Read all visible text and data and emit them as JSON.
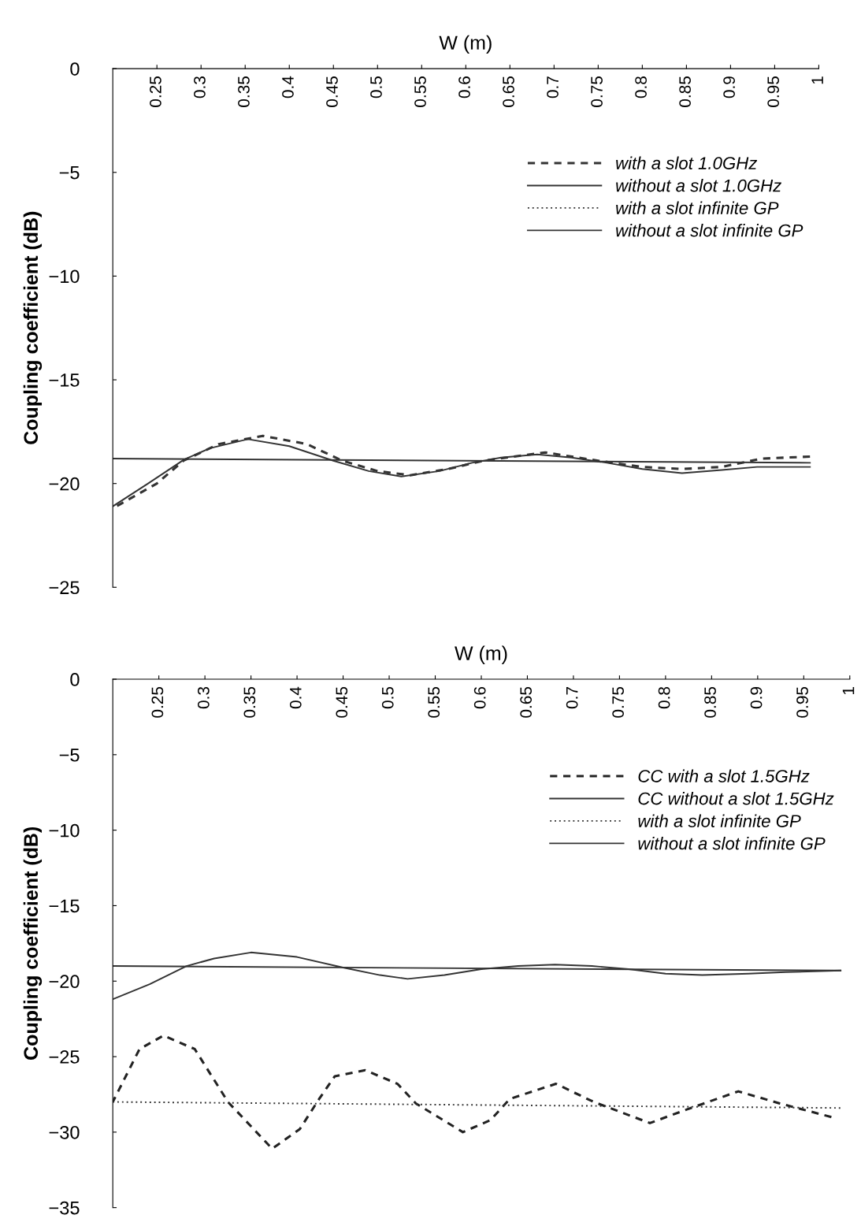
{
  "chart_data": [
    {
      "type": "line",
      "xlabel": "W (m)",
      "ylabel": "Coupling coefficient (dB)",
      "xlim": [
        0.2,
        1.0
      ],
      "xticks": [
        0.25,
        0.3,
        0.35,
        0.4,
        0.45,
        0.5,
        0.55,
        0.6,
        0.65,
        0.7,
        0.75,
        0.8,
        0.85,
        0.9,
        0.95,
        1
      ],
      "ylim": [
        -25,
        0
      ],
      "yticks": [
        0,
        -5,
        -10,
        -15,
        -20,
        -25
      ],
      "grid": false,
      "legend": "right",
      "marker": "none",
      "series": [
        {
          "name": "with a slot 1.0GHz",
          "color": "#333333",
          "line_style": "dashed",
          "x": [
            0.2,
            0.25,
            0.28,
            0.32,
            0.37,
            0.42,
            0.46,
            0.5,
            0.537,
            0.58,
            0.62,
            0.69,
            0.75,
            0.8,
            0.845,
            0.89,
            0.935,
            0.99
          ],
          "values": [
            -21.2,
            -20.0,
            -18.9,
            -18.1,
            -17.7,
            -18.1,
            -18.9,
            -19.4,
            -19.6,
            -19.3,
            -18.9,
            -18.5,
            -18.9,
            -19.2,
            -19.3,
            -19.2,
            -18.8,
            -18.7
          ]
        },
        {
          "name": "without a slot 1.0GHz",
          "color": "#333333",
          "line_style": "solid",
          "x": [
            0.2,
            0.24,
            0.281,
            0.31,
            0.353,
            0.4,
            0.45,
            0.49,
            0.527,
            0.57,
            0.607,
            0.64,
            0.681,
            0.72,
            0.76,
            0.8,
            0.845,
            0.89,
            0.93,
            0.99
          ],
          "values": [
            -21.1,
            -20.0,
            -18.84,
            -18.3,
            -17.86,
            -18.2,
            -18.9,
            -19.4,
            -19.66,
            -19.4,
            -19.0,
            -18.75,
            -18.6,
            -18.75,
            -19.0,
            -19.3,
            -19.5,
            -19.35,
            -19.2,
            -19.2
          ]
        },
        {
          "name": "with a slot infinite GP",
          "color": "#333333",
          "line_style": "dotted"
        },
        {
          "name": "without a slot infinite GP",
          "color": "#333333",
          "line_style": "solid",
          "x": [
            0.2,
            0.99
          ],
          "values": [
            -18.8,
            -19.0
          ]
        }
      ]
    },
    {
      "type": "line",
      "xlabel": "W (m)",
      "ylabel": "Coupling coefficient (dB)",
      "xlim": [
        0.2,
        1.0
      ],
      "xticks": [
        0.25,
        0.3,
        0.35,
        0.4,
        0.45,
        0.5,
        0.55,
        0.6,
        0.65,
        0.7,
        0.75,
        0.8,
        0.85,
        0.9,
        0.95,
        1
      ],
      "ylim": [
        -35,
        0
      ],
      "yticks": [
        0,
        -5,
        -10,
        -15,
        -20,
        -25,
        -30,
        -35
      ],
      "grid": false,
      "legend": "right",
      "marker": "none",
      "series": [
        {
          "name": "CC with a slot 1.5GHz",
          "color": "#222222",
          "line_style": "dashed",
          "x": [
            0.2,
            0.229,
            0.255,
            0.289,
            0.325,
            0.373,
            0.403,
            0.424,
            0.441,
            0.474,
            0.509,
            0.529,
            0.58,
            0.61,
            0.631,
            0.681,
            0.722,
            0.783,
            0.823,
            0.879,
            0.924,
            0.98
          ],
          "values": [
            -28.0,
            -24.5,
            -23.6,
            -24.5,
            -28.0,
            -31.1,
            -29.8,
            -27.8,
            -26.3,
            -25.9,
            -26.8,
            -28.1,
            -30.0,
            -29.2,
            -27.8,
            -26.8,
            -28.0,
            -29.4,
            -28.5,
            -27.3,
            -28.1,
            -29.0
          ]
        },
        {
          "name": "CC without a slot 1.5GHz",
          "color": "#333333",
          "line_style": "solid",
          "x": [
            0.2,
            0.24,
            0.28,
            0.31,
            0.35,
            0.4,
            0.45,
            0.49,
            0.52,
            0.56,
            0.6,
            0.64,
            0.68,
            0.72,
            0.76,
            0.8,
            0.84,
            0.89,
            0.93,
            0.99
          ],
          "values": [
            -21.2,
            -20.2,
            -19.0,
            -18.5,
            -18.1,
            -18.4,
            -19.1,
            -19.6,
            -19.85,
            -19.6,
            -19.2,
            -19.0,
            -18.9,
            -19.0,
            -19.2,
            -19.5,
            -19.6,
            -19.5,
            -19.4,
            -19.3
          ]
        },
        {
          "name": "with a slot infinite GP",
          "color": "#333333",
          "line_style": "dotted",
          "x": [
            0.2,
            0.99
          ],
          "values": [
            -28.0,
            -28.4
          ]
        },
        {
          "name": "without a slot infinite GP",
          "color": "#333333",
          "line_style": "solid",
          "x": [
            0.2,
            0.99
          ],
          "values": [
            -19.0,
            -19.3
          ]
        }
      ]
    }
  ]
}
